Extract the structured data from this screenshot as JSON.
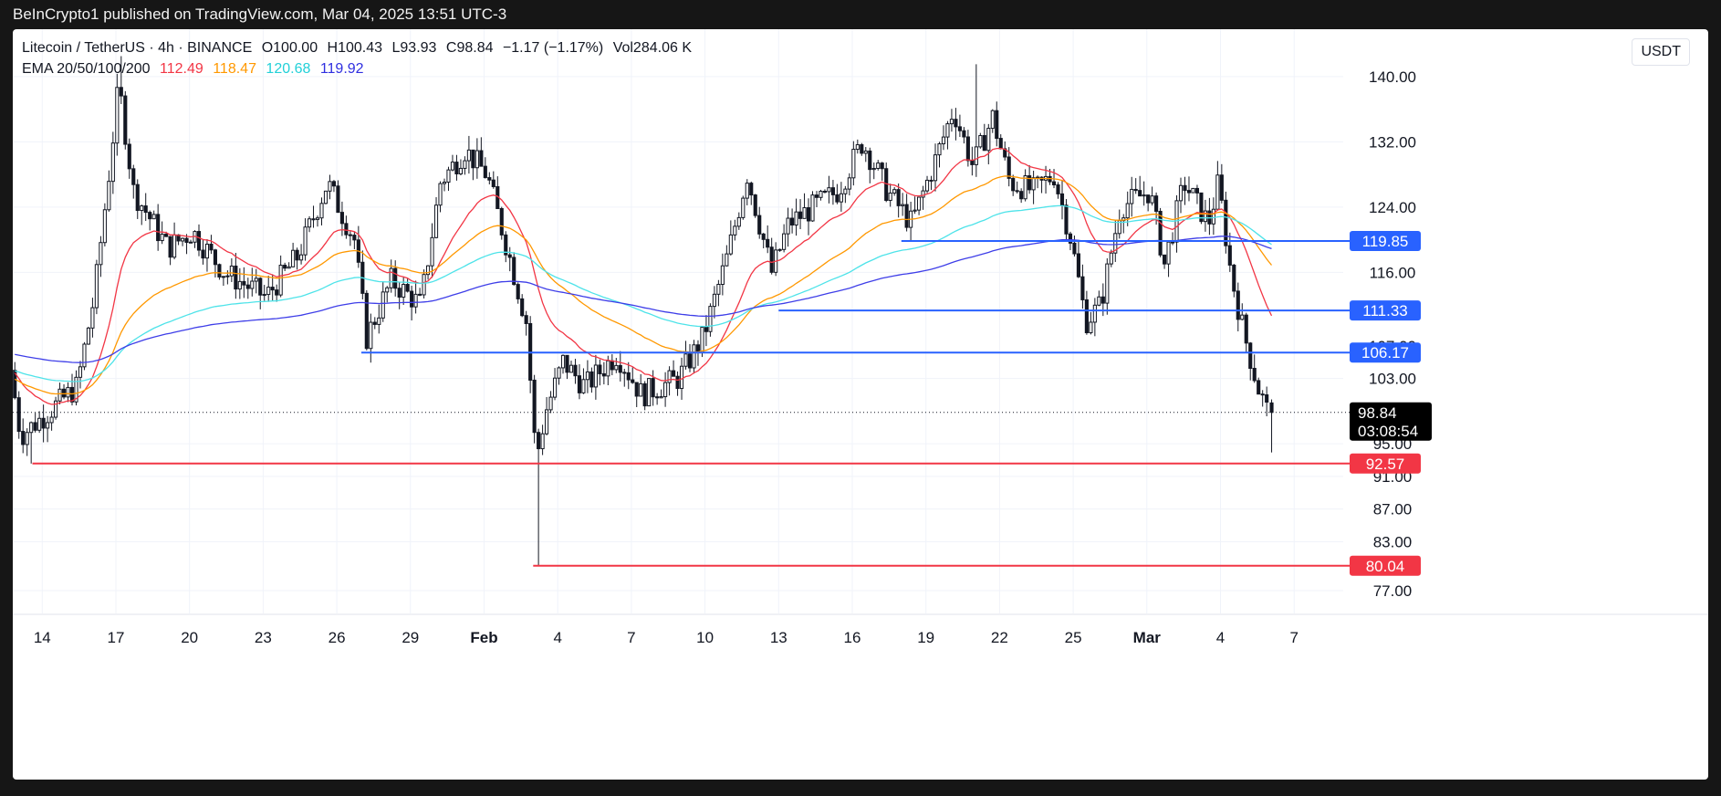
{
  "header": {
    "published": "BeInCrypto1 published on TradingView.com, Mar 04, 2025 13:51 UTC-3"
  },
  "legend": {
    "symbol": "Litecoin / TetherUS · 4h · BINANCE",
    "open": "O100.00",
    "high": "H100.43",
    "low": "L93.93",
    "close": "C98.84",
    "change": "−1.17 (−1.17%)",
    "volume": "Vol284.06 K",
    "ema_label": "EMA 20/50/100/200",
    "ema20": "112.49",
    "ema50": "118.47",
    "ema100": "120.68",
    "ema200": "119.92"
  },
  "currency": "USDT",
  "colors": {
    "up": "#131722",
    "down": "#131722",
    "ema20": "#f23645",
    "ema50": "#ff9800",
    "ema100": "#4ee3e9",
    "ema200": "#3e3ee8",
    "support": "#f23645",
    "resistance": "#2962ff",
    "price_tag": "#000000"
  },
  "chart_data": {
    "type": "candlestick",
    "title": "",
    "xlabel": "",
    "ylabel": "",
    "interval": "4h",
    "ylim": [
      74.2,
      145.8
    ],
    "y_ticks": [
      140,
      132,
      124,
      116,
      103,
      95,
      91,
      87,
      83,
      77
    ],
    "y_tick_labels": [
      "140.00",
      "132.00",
      "124.00",
      "116.00",
      "103.00",
      "95.00",
      "91.00",
      "87.00",
      "83.00",
      "77.00"
    ],
    "hidden_tick_label": "107.00",
    "x_ticks": [
      {
        "label": "14",
        "day": 0
      },
      {
        "label": "17",
        "day": 3
      },
      {
        "label": "20",
        "day": 6
      },
      {
        "label": "23",
        "day": 9
      },
      {
        "label": "26",
        "day": 12
      },
      {
        "label": "29",
        "day": 15
      },
      {
        "label": "Feb",
        "day": 18
      },
      {
        "label": "4",
        "day": 21
      },
      {
        "label": "7",
        "day": 24
      },
      {
        "label": "10",
        "day": 27
      },
      {
        "label": "13",
        "day": 30
      },
      {
        "label": "16",
        "day": 33
      },
      {
        "label": "19",
        "day": 36
      },
      {
        "label": "22",
        "day": 39
      },
      {
        "label": "25",
        "day": 42
      },
      {
        "label": "Mar",
        "day": 45
      },
      {
        "label": "4",
        "day": 48
      },
      {
        "label": "7",
        "day": 51
      }
    ],
    "x_range_days": [
      -1.2,
      53
    ],
    "key_points": [
      {
        "day": -1.2,
        "close": 104
      },
      {
        "day": -0.8,
        "close": 96
      },
      {
        "day": 0,
        "close": 98
      },
      {
        "day": 1.5,
        "close": 102
      },
      {
        "day": 2.2,
        "close": 113
      },
      {
        "day": 2.8,
        "close": 128
      },
      {
        "day": 3.2,
        "close": 139
      },
      {
        "day": 3.8,
        "close": 126
      },
      {
        "day": 5.2,
        "close": 119
      },
      {
        "day": 6.2,
        "close": 121
      },
      {
        "day": 7.5,
        "close": 116
      },
      {
        "day": 9.2,
        "close": 113
      },
      {
        "day": 10.5,
        "close": 118
      },
      {
        "day": 11.7,
        "close": 127
      },
      {
        "day": 12.8,
        "close": 120
      },
      {
        "day": 13.3,
        "close": 108
      },
      {
        "day": 14.3,
        "close": 115
      },
      {
        "day": 15.5,
        "close": 112
      },
      {
        "day": 16.3,
        "close": 127
      },
      {
        "day": 17.3,
        "close": 131
      },
      {
        "day": 18.2,
        "close": 128
      },
      {
        "day": 19.2,
        "close": 117
      },
      {
        "day": 19.8,
        "close": 110
      },
      {
        "day": 20.2,
        "close": 93
      },
      {
        "day": 20.6,
        "close": 99
      },
      {
        "day": 21.3,
        "close": 105
      },
      {
        "day": 22.2,
        "close": 102
      },
      {
        "day": 23.5,
        "close": 106
      },
      {
        "day": 24.5,
        "close": 101
      },
      {
        "day": 26,
        "close": 103
      },
      {
        "day": 27,
        "close": 108
      },
      {
        "day": 28,
        "close": 118
      },
      {
        "day": 28.8,
        "close": 128
      },
      {
        "day": 29.8,
        "close": 116
      },
      {
        "day": 30.5,
        "close": 122
      },
      {
        "day": 31.5,
        "close": 124
      },
      {
        "day": 32.5,
        "close": 126
      },
      {
        "day": 33.5,
        "close": 132
      },
      {
        "day": 34.5,
        "close": 126
      },
      {
        "day": 35.5,
        "close": 122
      },
      {
        "day": 36.5,
        "close": 130
      },
      {
        "day": 37.2,
        "close": 136
      },
      {
        "day": 38,
        "close": 129
      },
      {
        "day": 38.8,
        "close": 135
      },
      {
        "day": 39.5,
        "close": 127
      },
      {
        "day": 40.5,
        "close": 126
      },
      {
        "day": 41.3,
        "close": 128
      },
      {
        "day": 42,
        "close": 120
      },
      {
        "day": 42.6,
        "close": 110
      },
      {
        "day": 43.2,
        "close": 112
      },
      {
        "day": 44,
        "close": 124
      },
      {
        "day": 45.2,
        "close": 126
      },
      {
        "day": 45.8,
        "close": 117
      },
      {
        "day": 46.6,
        "close": 127
      },
      {
        "day": 47.6,
        "close": 122
      },
      {
        "day": 48,
        "close": 127
      },
      {
        "day": 48.5,
        "close": 116
      },
      {
        "day": 49,
        "close": 109
      },
      {
        "day": 49.6,
        "close": 102
      },
      {
        "day": 50,
        "close": 98.84
      }
    ],
    "last_candle": {
      "open": 100.0,
      "high": 100.43,
      "low": 93.93,
      "close": 98.84
    },
    "current_price": {
      "value": 98.84,
      "label": "98.84",
      "countdown": "03:08:54"
    },
    "ema_values": {
      "ema20": 112.49,
      "ema50": 118.47,
      "ema100": 120.68,
      "ema200": 119.92
    },
    "levels": [
      {
        "value": 119.85,
        "label": "119.85",
        "kind": "resistance",
        "from_day": 35
      },
      {
        "value": 111.33,
        "label": "111.33",
        "kind": "resistance",
        "from_day": 30
      },
      {
        "value": 106.17,
        "label": "106.17",
        "kind": "resistance",
        "from_day": 13
      },
      {
        "value": 92.57,
        "label": "92.57",
        "kind": "support",
        "from_day": -0.4
      },
      {
        "value": 80.04,
        "label": "80.04",
        "kind": "support",
        "from_day": 20
      }
    ],
    "grid": true
  }
}
